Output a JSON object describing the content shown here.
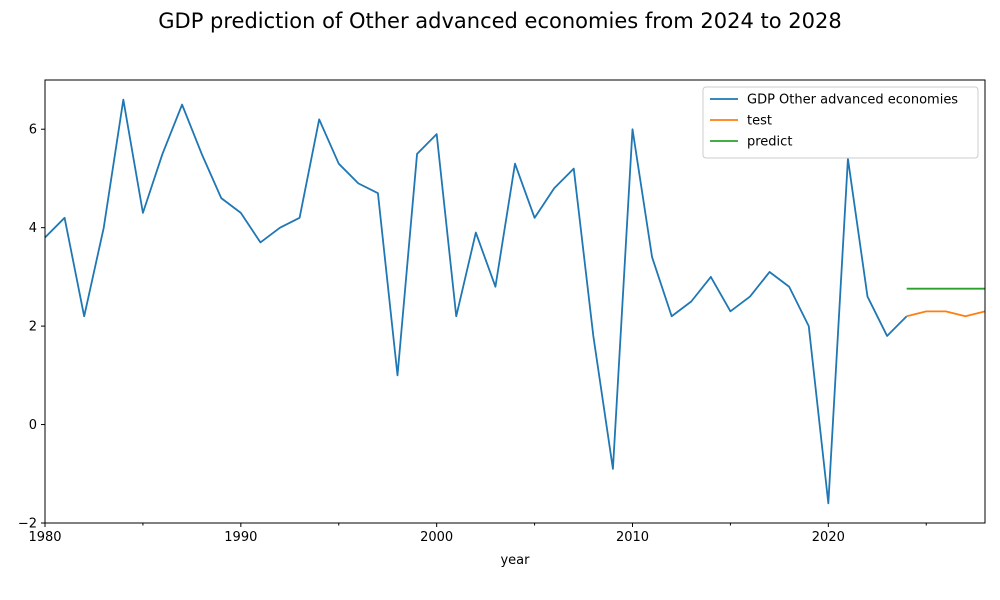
{
  "chart_data": {
    "type": "line",
    "title": "GDP prediction of Other advanced economies from 2024 to 2028",
    "xlabel": "year",
    "ylabel": "",
    "xlim": [
      1980,
      2028
    ],
    "ylim": [
      -2,
      7
    ],
    "x_ticks": [
      "1980",
      "1990",
      "2000",
      "2010",
      "2020"
    ],
    "y_ticks": [
      "−2",
      "0",
      "2",
      "4",
      "6"
    ],
    "grid": false,
    "legend_position": "top-right",
    "series": [
      {
        "name": "GDP Other advanced economies",
        "color": "#1f77b4",
        "x": [
          1980,
          1981,
          1982,
          1983,
          1984,
          1985,
          1986,
          1987,
          1988,
          1989,
          1990,
          1991,
          1992,
          1993,
          1994,
          1995,
          1996,
          1997,
          1998,
          1999,
          2000,
          2001,
          2002,
          2003,
          2004,
          2005,
          2006,
          2007,
          2008,
          2009,
          2010,
          2011,
          2012,
          2013,
          2014,
          2015,
          2016,
          2017,
          2018,
          2019,
          2020,
          2021,
          2022,
          2023,
          2024
        ],
        "values": [
          3.8,
          4.2,
          2.2,
          4.0,
          6.6,
          4.3,
          5.5,
          6.5,
          5.5,
          4.6,
          4.3,
          3.7,
          4.0,
          4.2,
          6.2,
          5.3,
          4.9,
          4.7,
          1.0,
          5.5,
          5.9,
          2.2,
          3.9,
          2.8,
          5.3,
          4.2,
          4.8,
          5.2,
          1.8,
          -0.9,
          6.0,
          3.4,
          2.2,
          2.5,
          3.0,
          2.3,
          2.6,
          3.1,
          2.8,
          2.0,
          -1.6,
          5.4,
          2.6,
          1.8,
          2.2
        ]
      },
      {
        "name": "test",
        "color": "#ff7f0e",
        "x": [
          2024,
          2025,
          2026,
          2027,
          2028
        ],
        "values": [
          2.2,
          2.3,
          2.3,
          2.2,
          2.3
        ]
      },
      {
        "name": "predict",
        "color": "#2ca02c",
        "x": [
          2024,
          2025,
          2026,
          2027,
          2028
        ],
        "values": [
          2.76,
          2.76,
          2.76,
          2.76,
          2.76
        ]
      }
    ]
  }
}
